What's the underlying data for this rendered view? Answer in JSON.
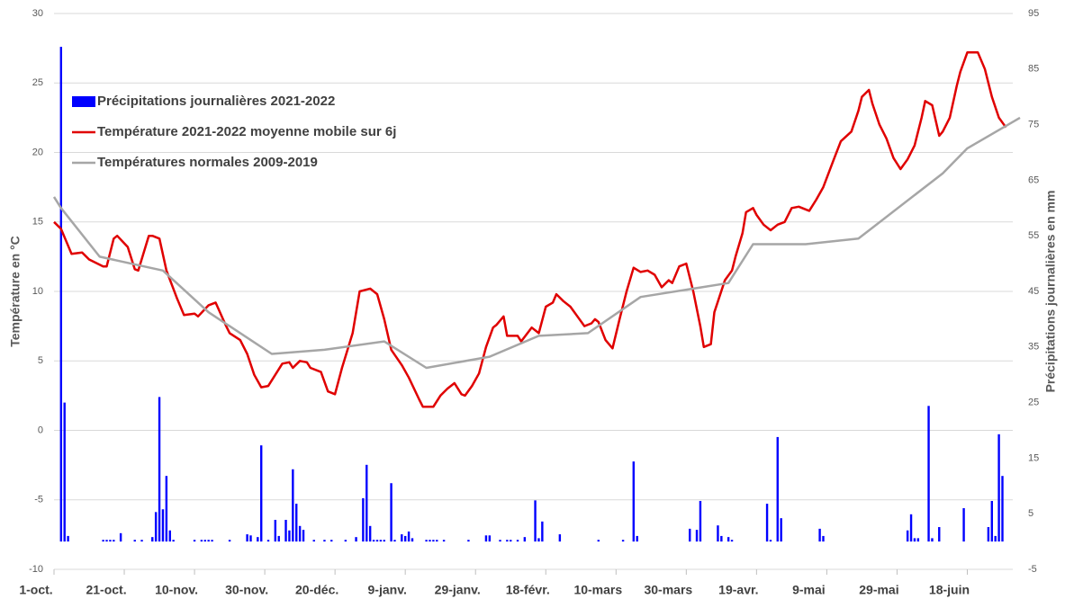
{
  "chart_data": {
    "type": "combo",
    "ylabel": "Température en °C",
    "y2label": "Précipitations journalières en mm",
    "xlim": [
      0,
      275
    ],
    "xticks": [
      {
        "value": 0,
        "label": "1-oct."
      },
      {
        "value": 20,
        "label": "21-oct."
      },
      {
        "value": 40,
        "label": "10-nov."
      },
      {
        "value": 60,
        "label": "30-nov."
      },
      {
        "value": 80,
        "label": "20-déc."
      },
      {
        "value": 100,
        "label": "9-janv."
      },
      {
        "value": 120,
        "label": "29-janv."
      },
      {
        "value": 140,
        "label": "18-févr."
      },
      {
        "value": 160,
        "label": "10-mars"
      },
      {
        "value": 180,
        "label": "30-mars"
      },
      {
        "value": 200,
        "label": "19-avr."
      },
      {
        "value": 220,
        "label": "9-mai"
      },
      {
        "value": 240,
        "label": "29-mai"
      },
      {
        "value": 260,
        "label": "18-juin"
      }
    ],
    "ylim": [
      -10,
      30
    ],
    "yticks": [
      -10,
      -5,
      0,
      5,
      10,
      15,
      20,
      25,
      30
    ],
    "y2lim": [
      -5,
      95
    ],
    "y2ticks": [
      -5,
      5,
      15,
      25,
      35,
      45,
      55,
      65,
      75,
      85,
      95
    ],
    "grid": true,
    "legend": "upper-left",
    "series": [
      {
        "name": "Précipitations journalières 2021-2022",
        "type": "bar",
        "axis": "y2",
        "color": "#0000ff",
        "x": [
          2,
          3,
          4,
          14,
          15,
          16,
          17,
          19,
          23,
          25,
          28,
          29,
          30,
          31,
          32,
          33,
          34,
          40,
          42,
          43,
          44,
          45,
          50,
          55,
          56,
          58,
          59,
          61,
          63,
          64,
          66,
          67,
          68,
          69,
          70,
          71,
          74,
          77,
          79,
          83,
          86,
          88,
          89,
          90,
          91,
          92,
          93,
          94,
          96,
          97,
          99,
          100,
          101,
          102,
          106,
          107,
          108,
          109,
          111,
          118,
          123,
          124,
          127,
          129,
          130,
          132,
          134,
          137,
          138,
          139,
          144,
          155,
          162,
          165,
          166,
          181,
          183,
          184,
          189,
          190,
          192,
          193,
          203,
          204,
          206,
          207,
          218,
          219,
          243,
          244,
          245,
          246,
          249,
          250,
          252,
          259,
          266,
          267,
          268,
          269,
          270
        ],
        "values": [
          89,
          25,
          1,
          0.3,
          0.3,
          0.3,
          0.3,
          1.5,
          0.3,
          0.3,
          0.8,
          5.3,
          26,
          5.8,
          11.8,
          2,
          0.3,
          0.3,
          0.3,
          0.3,
          0.3,
          0.3,
          0.3,
          1.3,
          1.1,
          0.8,
          17.3,
          0.3,
          3.9,
          1,
          3.9,
          2,
          13,
          6.8,
          2.8,
          2.1,
          0.3,
          0.3,
          0.3,
          0.3,
          0.8,
          7.8,
          13.8,
          2.8,
          0.3,
          0.3,
          0.3,
          0.3,
          10.5,
          0.3,
          1.3,
          1,
          1.8,
          0.6,
          0.3,
          0.3,
          0.3,
          0.3,
          0.3,
          0.3,
          1.1,
          1.1,
          0.3,
          0.3,
          0.3,
          0.3,
          0.8,
          7.4,
          0.6,
          3.6,
          1.3,
          0.3,
          0.3,
          14.4,
          1,
          2.3,
          2.1,
          7.3,
          2.9,
          1,
          0.8,
          0.3,
          6.8,
          0.3,
          18.8,
          4.2,
          2.3,
          1,
          2,
          4.9,
          0.6,
          0.6,
          24.4,
          0.6,
          2.6,
          6,
          2.6,
          7.3,
          1,
          19.3,
          11.8
        ]
      },
      {
        "name": "Température 2021-2022 moyenne mobile sur 6j",
        "type": "line",
        "axis": "y",
        "color": "#e00000",
        "x": [
          0,
          2,
          5,
          8,
          10,
          14,
          15,
          17,
          18,
          21,
          23,
          24,
          27,
          28,
          30,
          32,
          35,
          37,
          40,
          41,
          44,
          46,
          49,
          50,
          53,
          55,
          57,
          59,
          61,
          63,
          65,
          67,
          68,
          70,
          72,
          73,
          76,
          78,
          80,
          82,
          85,
          87,
          90,
          92,
          94,
          96,
          99,
          101,
          104,
          105,
          108,
          110,
          112,
          114,
          116,
          117,
          119,
          121,
          123,
          125,
          126,
          128,
          129,
          132,
          133,
          136,
          138,
          140,
          142,
          143,
          145,
          147,
          149,
          151,
          153,
          154,
          155,
          157,
          159,
          161,
          163,
          165,
          167,
          169,
          171,
          173,
          175,
          176,
          178,
          180,
          182,
          184,
          185,
          187,
          188,
          191,
          193,
          194,
          196,
          197,
          199,
          200,
          202,
          204,
          206,
          208,
          210,
          212,
          215,
          217,
          219,
          222,
          224,
          227,
          229,
          230,
          232,
          233,
          235,
          237,
          239,
          241,
          243,
          245,
          247,
          248,
          250,
          252,
          253,
          255,
          257,
          258,
          260,
          263,
          265,
          267,
          269,
          271
        ],
        "values": [
          15,
          14.5,
          12.7,
          12.8,
          12.3,
          11.8,
          11.8,
          13.8,
          14,
          13.2,
          11.6,
          11.5,
          14,
          14,
          13.8,
          11.5,
          9.5,
          8.3,
          8.4,
          8.2,
          9,
          9.2,
          7.5,
          7,
          6.5,
          5.5,
          4,
          3.1,
          3.2,
          4,
          4.8,
          4.9,
          4.5,
          5,
          4.9,
          4.5,
          4.2,
          2.8,
          2.6,
          4.5,
          7,
          10,
          10.2,
          9.8,
          8,
          5.8,
          4.7,
          3.8,
          2.2,
          1.7,
          1.7,
          2.5,
          3,
          3.4,
          2.6,
          2.5,
          3.2,
          4.1,
          6,
          7.4,
          7.6,
          8.2,
          6.8,
          6.8,
          6.4,
          7.4,
          7,
          8.9,
          9.2,
          9.8,
          9.3,
          8.9,
          8.2,
          7.5,
          7.7,
          8,
          7.8,
          6.5,
          5.9,
          8,
          10,
          11.7,
          11.4,
          11.5,
          11.2,
          10.3,
          10.8,
          10.6,
          11.8,
          12,
          10,
          7.5,
          6,
          6.2,
          8.5,
          10.8,
          11.5,
          12.5,
          14.2,
          15.7,
          16,
          15.5,
          14.8,
          14.4,
          14.8,
          15,
          16,
          16.1,
          15.8,
          16.6,
          17.5,
          19.5,
          20.8,
          21.5,
          23,
          24,
          24.5,
          23.5,
          22,
          21,
          19.6,
          18.8,
          19.5,
          20.5,
          22.5,
          23.7,
          23.4,
          21.2,
          21.5,
          22.5,
          24.8,
          25.8,
          27.2,
          27.2,
          26,
          24,
          22.5,
          21.8
        ]
      },
      {
        "name": "Températures normales 2009-2019",
        "type": "line",
        "axis": "y",
        "color": "#a6a6a6",
        "x": [
          0,
          2,
          13,
          31,
          44,
          62,
          77,
          94,
          106,
          124,
          138,
          152,
          167,
          192,
          199,
          214,
          229,
          253,
          260,
          275
        ],
        "values": [
          16.8,
          16,
          12.5,
          11.5,
          8.5,
          5.5,
          5.8,
          6.4,
          4.5,
          5.3,
          6.8,
          7,
          9.6,
          10.6,
          13.4,
          13.4,
          13.8,
          18.5,
          20.3,
          22.5
        ]
      }
    ]
  }
}
